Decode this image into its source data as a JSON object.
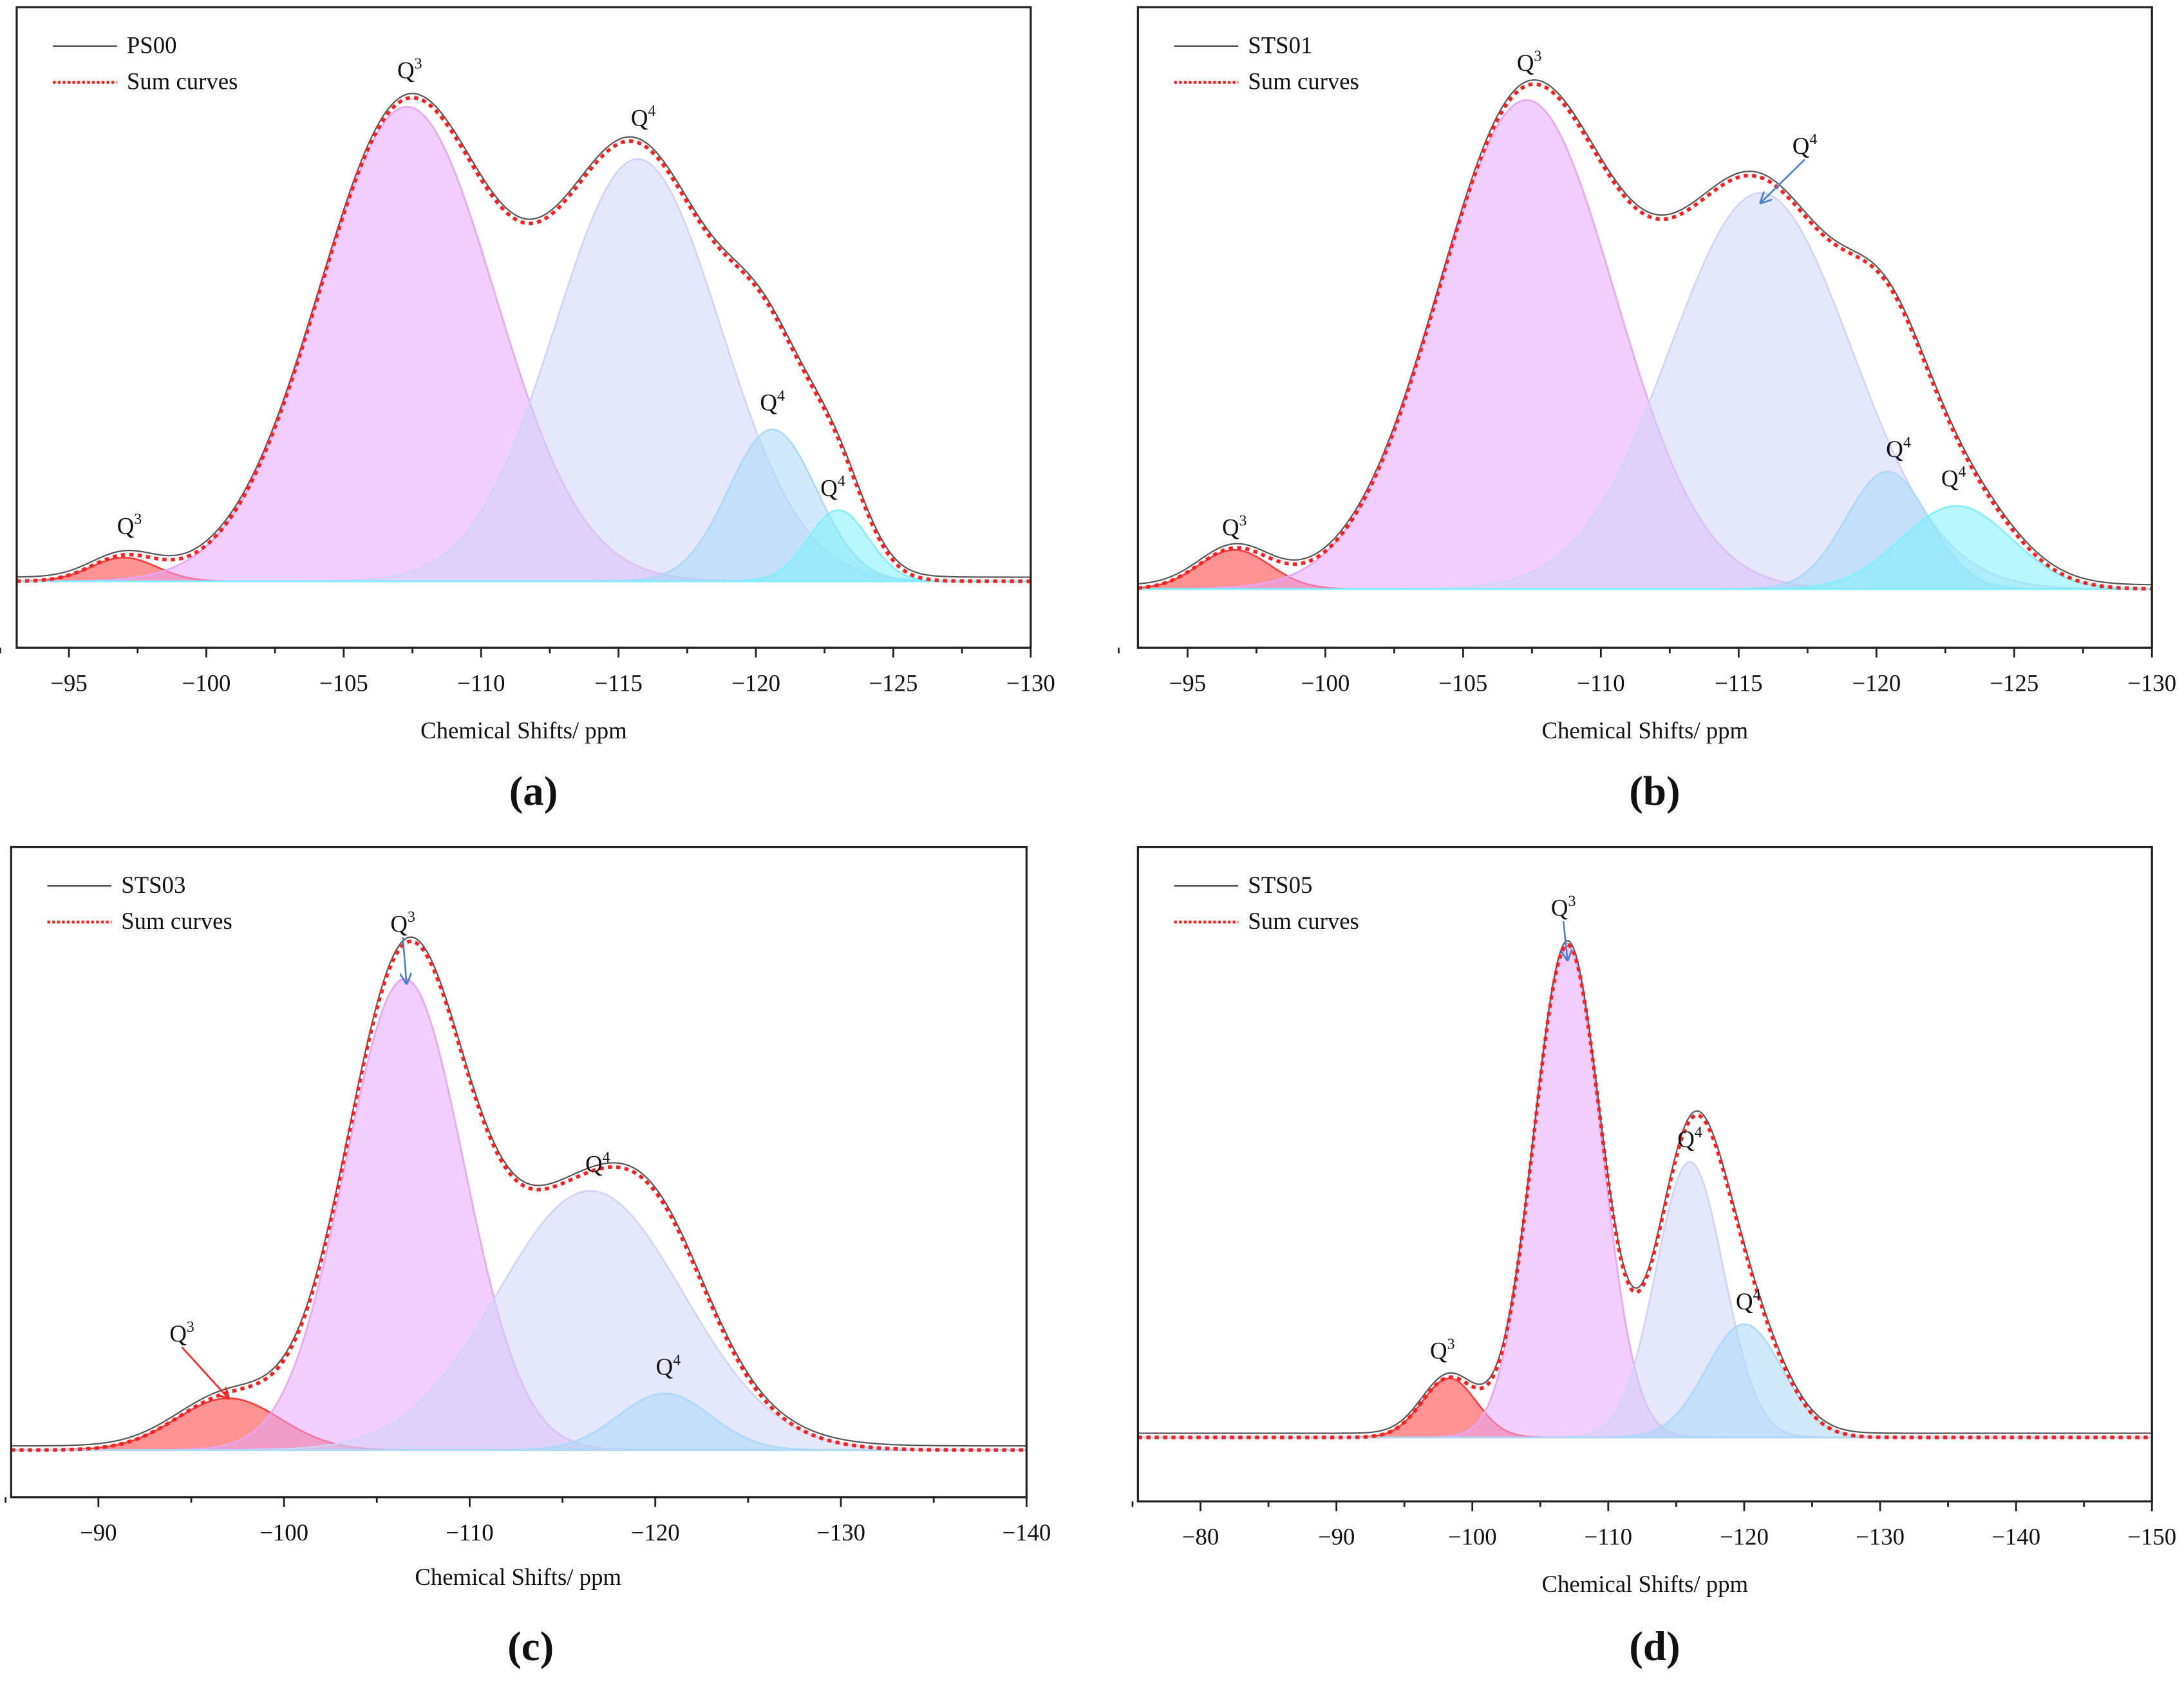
{
  "chart_data": [
    {
      "type": "line",
      "panel_label": "(a)",
      "xlabel": "Chemical Shifts/ ppm",
      "xlim": [
        -93.1,
        -130
      ],
      "ylim": [
        -0.14,
        1.21
      ],
      "xticks": [
        -95,
        -100,
        -105,
        -110,
        -115,
        -120,
        -125,
        -130
      ],
      "xtick_labels": [
        "−95",
        "−100",
        "−105",
        "−110",
        "−115",
        "−120",
        "−125",
        "−130"
      ],
      "minor_tick_step": 2.5,
      "legend": {
        "placement": "top-left",
        "entries": [
          {
            "label": "PS00",
            "style": "solid",
            "color": "#555555"
          },
          {
            "label": "Sum curves",
            "style": "dotted",
            "color": "#ff2020"
          }
        ]
      },
      "components": [
        {
          "label": "Q3",
          "center": -97.0,
          "amplitude": 0.05,
          "sigma": 1.2,
          "color": "#ff3b3b"
        },
        {
          "label": "Q3",
          "center": -107.3,
          "amplitude": 1.0,
          "sigma": 3.2,
          "color": "#e6a6f7"
        },
        {
          "label": "Q4",
          "center": -115.7,
          "amplitude": 0.89,
          "sigma": 3.0,
          "color": "#cfd4f7"
        },
        {
          "label": "Q4",
          "center": -120.6,
          "amplitude": 0.32,
          "sigma": 1.6,
          "color": "#a9d8fa"
        },
        {
          "label": "Q4",
          "center": -123.0,
          "amplitude": 0.15,
          "sigma": 1.1,
          "color": "#7ef0fb"
        }
      ],
      "annotations": [
        {
          "base": "Q",
          "sup": "3",
          "x": -107.4,
          "y": 1.06
        },
        {
          "base": "Q",
          "sup": "4",
          "x": -115.9,
          "y": 0.96
        },
        {
          "base": "Q",
          "sup": "4",
          "x": -120.6,
          "y": 0.36
        },
        {
          "base": "Q",
          "sup": "4",
          "x": -122.8,
          "y": 0.18
        },
        {
          "base": "Q",
          "sup": "3",
          "x": -97.2,
          "y": 0.1
        }
      ]
    },
    {
      "type": "line",
      "panel_label": "(b)",
      "xlabel": "Chemical Shifts/ ppm",
      "xlim": [
        -93.2,
        -130
      ],
      "ylim": [
        -0.12,
        1.19
      ],
      "xticks": [
        -95,
        -100,
        -105,
        -110,
        -115,
        -120,
        -125,
        -130
      ],
      "xtick_labels": [
        "−95",
        "−100",
        "−105",
        "−110",
        "−115",
        "−120",
        "−125",
        "−130"
      ],
      "minor_tick_step": 2.5,
      "legend": {
        "placement": "top-left",
        "entries": [
          {
            "label": "STS01",
            "style": "solid",
            "color": "#555555"
          },
          {
            "label": "Sum curves",
            "style": "dotted",
            "color": "#ff2020"
          }
        ]
      },
      "components": [
        {
          "label": "Q3",
          "center": -96.7,
          "amplitude": 0.08,
          "sigma": 1.3,
          "color": "#ff3b3b"
        },
        {
          "label": "Q3",
          "center": -107.3,
          "amplitude": 1.0,
          "sigma": 3.2,
          "color": "#e6a6f7"
        },
        {
          "label": "Q4",
          "center": -115.8,
          "amplitude": 0.81,
          "sigma": 3.3,
          "color": "#cfd4f7"
        },
        {
          "label": "Q4",
          "center": -120.4,
          "amplitude": 0.24,
          "sigma": 1.5,
          "color": "#a9d8fa"
        },
        {
          "label": "Q4",
          "center": -122.9,
          "amplitude": 0.17,
          "sigma": 2.0,
          "color": "#7ef0fb"
        }
      ],
      "annotations": [
        {
          "base": "Q",
          "sup": "3",
          "x": -107.4,
          "y": 1.06
        },
        {
          "base": "Q",
          "sup": "4",
          "x": -117.4,
          "y": 0.89,
          "arrow_to": [
            -115.8,
            0.79
          ],
          "arrow_color": "#4a7fd0"
        },
        {
          "base": "Q",
          "sup": "4",
          "x": -120.8,
          "y": 0.27
        },
        {
          "base": "Q",
          "sup": "4",
          "x": -122.8,
          "y": 0.21
        },
        {
          "base": "Q",
          "sup": "3",
          "x": -96.7,
          "y": 0.11
        }
      ]
    },
    {
      "type": "line",
      "panel_label": "(c)",
      "xlabel": "Chemical Shifts/ ppm",
      "xlim": [
        -85.3,
        -140
      ],
      "ylim": [
        -0.1,
        1.28
      ],
      "xticks": [
        -90,
        -100,
        -110,
        -120,
        -130,
        -140
      ],
      "xtick_labels": [
        "−90",
        "−100",
        "−110",
        "−120",
        "−130",
        "−140"
      ],
      "minor_tick_step": 5,
      "legend": {
        "placement": "top-left",
        "entries": [
          {
            "label": "STS03",
            "style": "solid",
            "color": "#555555"
          },
          {
            "label": "Sum curves",
            "style": "dotted",
            "color": "#ff2020"
          }
        ]
      },
      "components": [
        {
          "label": "Q3",
          "center": -97.0,
          "amplitude": 0.11,
          "sigma": 2.8,
          "color": "#ff3b3b"
        },
        {
          "label": "Q3",
          "center": -106.5,
          "amplitude": 1.0,
          "sigma": 3.2,
          "color": "#e6a6f7"
        },
        {
          "label": "Q4",
          "center": -116.5,
          "amplitude": 0.55,
          "sigma": 5.0,
          "color": "#cfd4f7"
        },
        {
          "label": "Q4",
          "center": -120.5,
          "amplitude": 0.12,
          "sigma": 2.5,
          "color": "#a9d8fa"
        }
      ],
      "annotations": [
        {
          "base": "Q",
          "sup": "3",
          "x": -106.4,
          "y": 1.1,
          "arrow_to": [
            -106.6,
            0.99
          ],
          "arrow_color": "#4a7fd0"
        },
        {
          "base": "Q",
          "sup": "4",
          "x": -116.9,
          "y": 0.59
        },
        {
          "base": "Q",
          "sup": "4",
          "x": -120.7,
          "y": 0.16
        },
        {
          "base": "Q",
          "sup": "3",
          "x": -94.5,
          "y": 0.23,
          "arrow_to": [
            -97.0,
            0.11
          ],
          "arrow_color": "#ff2020"
        }
      ]
    },
    {
      "type": "line",
      "panel_label": "(d)",
      "xlabel": "Chemical Shifts/ ppm",
      "xlim": [
        -75.4,
        -150
      ],
      "ylim": [
        -0.13,
        1.2
      ],
      "xticks": [
        -80,
        -90,
        -100,
        -110,
        -120,
        -130,
        -140,
        -150
      ],
      "xtick_labels": [
        "−80",
        "−90",
        "−100",
        "−110",
        "−120",
        "−130",
        "−140",
        "−150"
      ],
      "minor_tick_step": 5,
      "legend": {
        "placement": "top-left",
        "entries": [
          {
            "label": "STS05",
            "style": "solid",
            "color": "#555555"
          },
          {
            "label": "Sum curves",
            "style": "dotted",
            "color": "#ff2020"
          }
        ]
      },
      "components": [
        {
          "label": "Q3",
          "center": -98.3,
          "amplitude": 0.12,
          "sigma": 2.0,
          "color": "#ff3b3b"
        },
        {
          "label": "Q3",
          "center": -107.0,
          "amplitude": 1.0,
          "sigma": 2.5,
          "color": "#e6a6f7"
        },
        {
          "label": "Q4",
          "center": -116.0,
          "amplitude": 0.56,
          "sigma": 2.5,
          "color": "#cfd4f7"
        },
        {
          "label": "Q4",
          "center": -120.0,
          "amplitude": 0.23,
          "sigma": 2.8,
          "color": "#a9d8fa"
        }
      ],
      "annotations": [
        {
          "base": "Q",
          "sup": "3",
          "x": -106.7,
          "y": 1.06,
          "arrow_to": [
            -107.0,
            0.97
          ],
          "arrow_color": "#4a7fd0"
        },
        {
          "base": "Q",
          "sup": "4",
          "x": -116.0,
          "y": 0.59
        },
        {
          "base": "Q",
          "sup": "4",
          "x": -120.3,
          "y": 0.26
        },
        {
          "base": "Q",
          "sup": "3",
          "x": -97.8,
          "y": 0.16
        }
      ]
    }
  ]
}
